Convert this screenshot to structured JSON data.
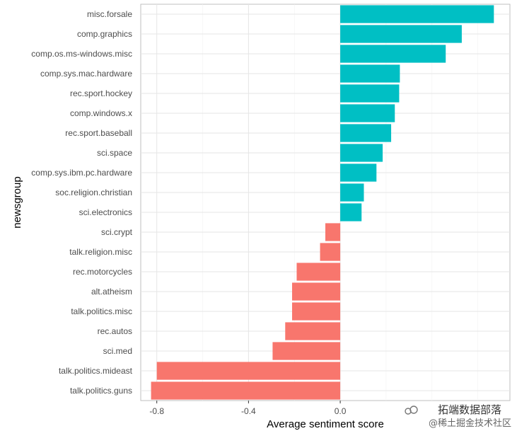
{
  "chart_data": {
    "type": "bar",
    "orientation": "horizontal",
    "xlabel": "Average sentiment score",
    "ylabel": "newsgroup",
    "xlim": [
      -0.87,
      0.74
    ],
    "x_ticks": [
      "-0.8",
      "-0.4",
      "0.0"
    ],
    "x_tick_values": [
      -0.8,
      -0.4,
      0.0
    ],
    "grid": true,
    "colors": {
      "positive": "#00BFC4",
      "negative": "#F8766D"
    },
    "categories": [
      "misc.forsale",
      "comp.graphics",
      "comp.os.ms-windows.misc",
      "comp.sys.mac.hardware",
      "rec.sport.hockey",
      "comp.windows.x",
      "rec.sport.baseball",
      "sci.space",
      "comp.sys.ibm.pc.hardware",
      "soc.religion.christian",
      "sci.electronics",
      "sci.crypt",
      "talk.religion.misc",
      "rec.motorcycles",
      "alt.atheism",
      "talk.politics.misc",
      "rec.autos",
      "sci.med",
      "talk.politics.mideast",
      "talk.politics.guns"
    ],
    "values": [
      0.67,
      0.53,
      0.46,
      0.26,
      0.257,
      0.238,
      0.222,
      0.185,
      0.158,
      0.103,
      0.093,
      -0.065,
      -0.088,
      -0.19,
      -0.21,
      -0.21,
      -0.24,
      -0.295,
      -0.8,
      -0.825
    ]
  },
  "watermark": {
    "main": "拓端数据部落",
    "sub": "@稀土掘金技术社区"
  }
}
